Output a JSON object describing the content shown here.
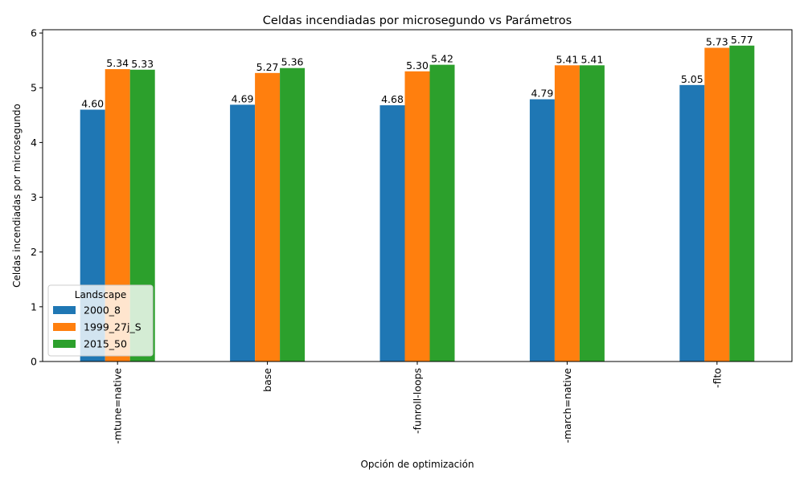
{
  "chart_data": {
    "type": "bar",
    "title": "Celdas incendiadas por microsegundo vs Parámetros",
    "xlabel": "Opción de optimización",
    "ylabel": "Celdas incendiadas por microsegundo",
    "categories": [
      "-mtune=native",
      "base",
      "-funroll-loops",
      "-march=native",
      "-flto"
    ],
    "series": [
      {
        "name": "2000_8",
        "color": "#1f77b4",
        "values": [
          4.6,
          4.69,
          4.68,
          4.79,
          5.05
        ]
      },
      {
        "name": "1999_27j_S",
        "color": "#ff7f0e",
        "values": [
          5.34,
          5.27,
          5.3,
          5.41,
          5.73
        ]
      },
      {
        "name": "2015_50",
        "color": "#2ca02c",
        "values": [
          5.33,
          5.36,
          5.42,
          5.41,
          5.77
        ]
      }
    ],
    "ylim": [
      0,
      6.06
    ],
    "yticks": [
      0,
      1,
      2,
      3,
      4,
      5,
      6
    ],
    "value_format_decimals": 2,
    "grid": false,
    "legend": {
      "title": "Landscape",
      "placement": "lower-left"
    }
  }
}
